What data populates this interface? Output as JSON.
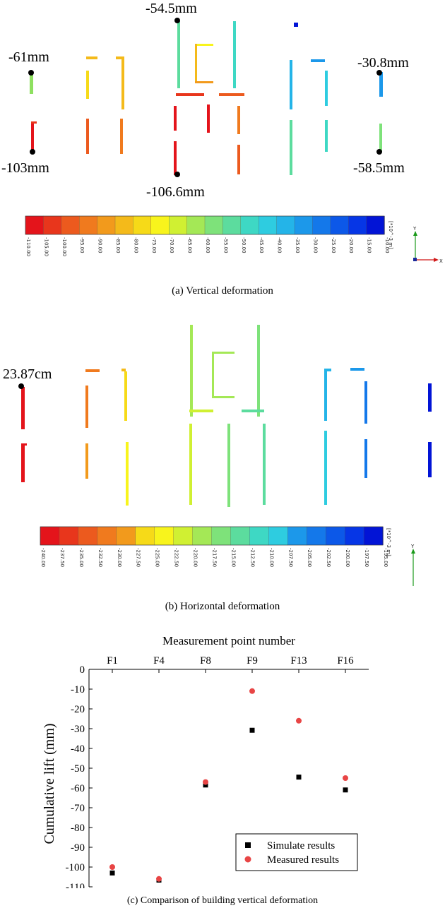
{
  "panel_a": {
    "caption": "(a) Vertical deformation",
    "annotations": [
      "-54.5mm",
      "-61mm",
      "-30.8mm",
      "-103mm",
      "-58.5mm",
      "-106.6mm"
    ],
    "colorbar_ticks": [
      "-110.00",
      "-105.00",
      "-100.00",
      "-95.00",
      "-90.00",
      "-85.00",
      "-80.00",
      "-75.00",
      "-70.00",
      "-65.00",
      "-60.00",
      "-55.00",
      "-50.00",
      "-45.00",
      "-40.00",
      "-35.00",
      "-30.00",
      "-25.00",
      "-20.00",
      "-15.00",
      "-10.00"
    ],
    "colorbar_unit": "[*10^-3 m]",
    "axis_y": "Y",
    "axis_x": "X"
  },
  "panel_b": {
    "caption": "(b) Horizontal deformation",
    "annotations": [
      "23.87cm"
    ],
    "colorbar_ticks": [
      "-240.00",
      "-237.50",
      "-235.00",
      "-232.50",
      "-230.00",
      "-227.50",
      "-225.00",
      "-222.50",
      "-220.00",
      "-217.50",
      "-215.00",
      "-212.50",
      "-210.00",
      "-207.50",
      "-205.00",
      "-202.50",
      "-200.00",
      "-197.50",
      "-195.00"
    ],
    "colorbar_unit": "[*10^-3 m]",
    "axis_y": "Y",
    "axis_x": "X"
  },
  "colors": {
    "ramp": [
      "#e4141b",
      "#e8361c",
      "#ec5a1e",
      "#f07a1e",
      "#f29a1c",
      "#f4ba1a",
      "#f6da18",
      "#f8f41c",
      "#d0f032",
      "#a4e856",
      "#7ee27a",
      "#5cdc9e",
      "#3ed8c4",
      "#2ecce0",
      "#24b4e8",
      "#1c98ea",
      "#1478ea",
      "#0c58e8",
      "#0636e6",
      "#0214d6"
    ],
    "simulate": "#000000",
    "measured": "#e84545"
  },
  "chart_data": {
    "type": "scatter",
    "title": "Measurement point number",
    "caption": "(c)  Comparison of building vertical deformation",
    "xlabel": "Measurement point number",
    "ylabel": "Cumulative lift (mm)",
    "categories": [
      "F1",
      "F4",
      "F8",
      "F9",
      "F13",
      "F16"
    ],
    "yticks": [
      "0",
      "-10",
      "-20",
      "-30",
      "-40",
      "-50",
      "-60",
      "-70",
      "-80",
      "-90",
      "-100",
      "-110"
    ],
    "ylim": [
      -110,
      0
    ],
    "legend_position": "bottom-right",
    "series": [
      {
        "name": "Simulate results",
        "marker": "square",
        "values": [
          -103,
          -106.6,
          -58.5,
          -30.8,
          -54.5,
          -61
        ]
      },
      {
        "name": "Measured results",
        "marker": "circle",
        "values": [
          -100,
          -106,
          -57,
          -11,
          -26,
          -55
        ]
      }
    ]
  }
}
